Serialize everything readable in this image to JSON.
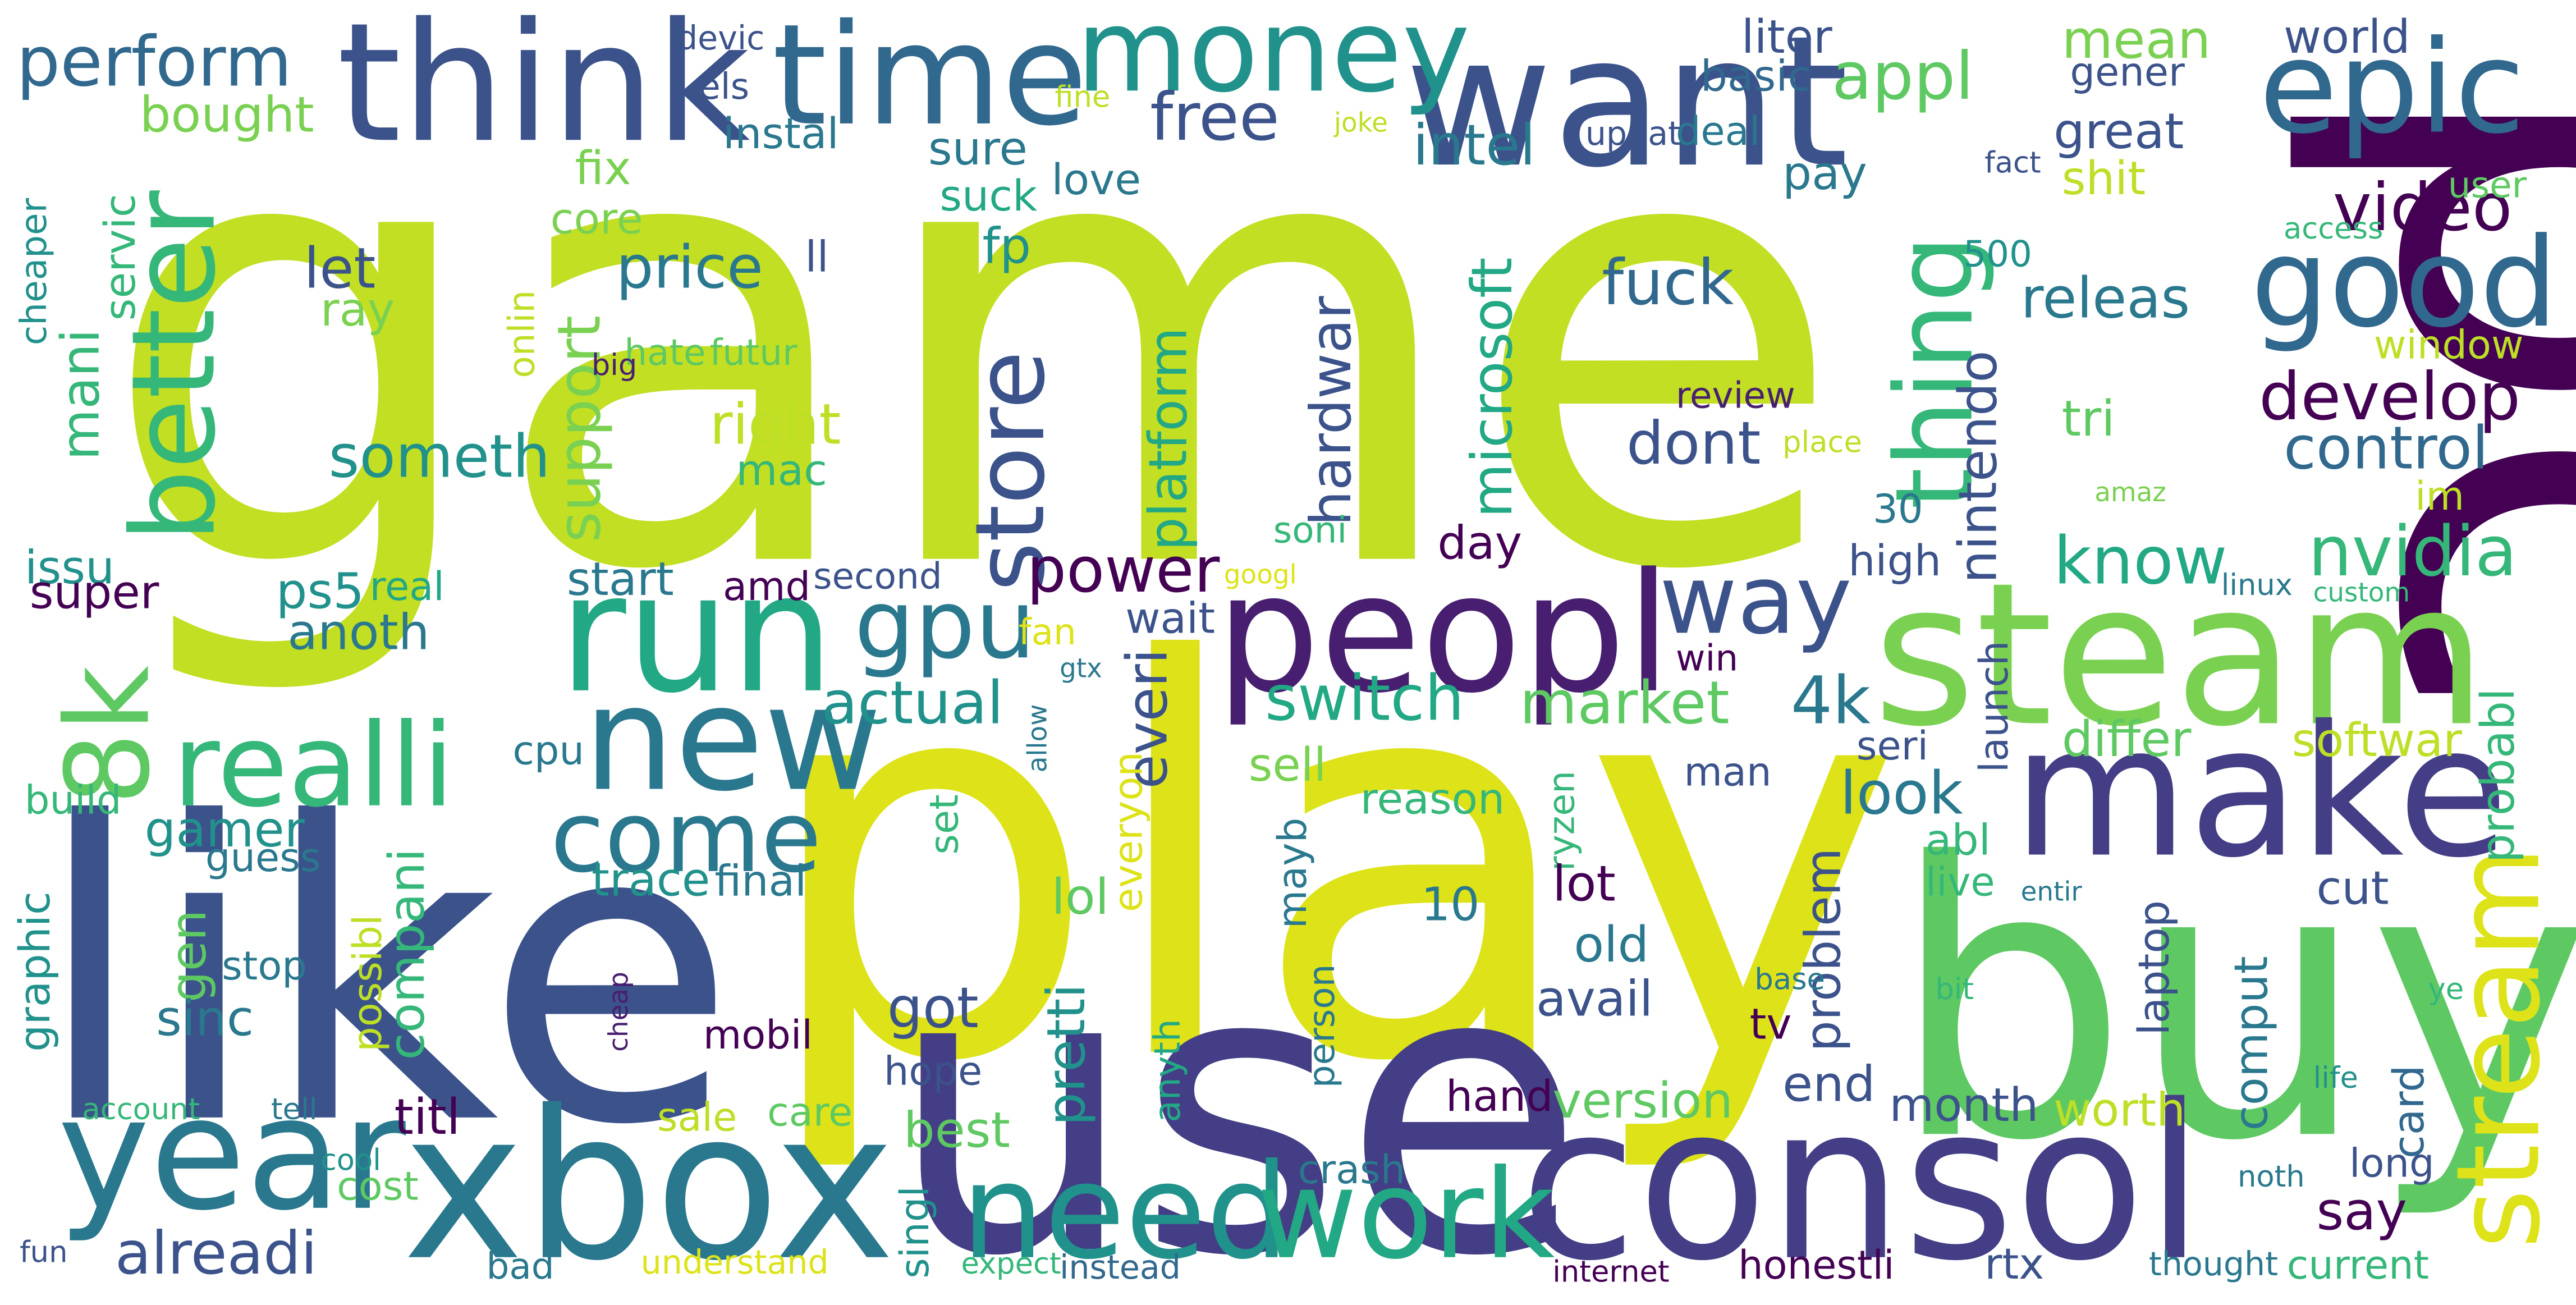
{
  "wordcloud": {
    "words": [
      {
        "text": "game",
        "color": "#c2df23"
      },
      {
        "text": "pc",
        "color": "#440154"
      },
      {
        "text": "play",
        "color": "#dde318"
      },
      {
        "text": "like",
        "color": "#3b528b"
      },
      {
        "text": "use",
        "color": "#433e85"
      },
      {
        "text": "buy",
        "color": "#5ec962"
      },
      {
        "text": "want",
        "color": "#3b528b"
      },
      {
        "text": "think",
        "color": "#3b528b"
      },
      {
        "text": "time",
        "color": "#31688e"
      },
      {
        "text": "money",
        "color": "#21918c"
      },
      {
        "text": "epic",
        "color": "#31688e"
      },
      {
        "text": "steam",
        "color": "#7ad151"
      },
      {
        "text": "consol",
        "color": "#433e85"
      },
      {
        "text": "xbox",
        "color": "#2a788e"
      },
      {
        "text": "make",
        "color": "#433e85"
      },
      {
        "text": "peopl",
        "color": "#481f70"
      },
      {
        "text": "run",
        "color": "#22a884"
      },
      {
        "text": "new",
        "color": "#2a788e"
      },
      {
        "text": "good",
        "color": "#31688e"
      },
      {
        "text": "year",
        "color": "#2a788e"
      },
      {
        "text": "better",
        "color": "#35b779"
      },
      {
        "text": "thing",
        "color": "#35b779"
      },
      {
        "text": "stream",
        "color": "#dde318"
      },
      {
        "text": "need",
        "color": "#21918c"
      },
      {
        "text": "work",
        "color": "#22a884"
      },
      {
        "text": "8k",
        "color": "#5ec962"
      },
      {
        "text": "realli",
        "color": "#35b779"
      },
      {
        "text": "come",
        "color": "#2a788e"
      },
      {
        "text": "store",
        "color": "#3b528b"
      },
      {
        "text": "gpu",
        "color": "#2a788e"
      },
      {
        "text": "way",
        "color": "#3b528b"
      },
      {
        "text": "perform",
        "color": "#31688e"
      },
      {
        "text": "appl",
        "color": "#5ec962"
      },
      {
        "text": "free",
        "color": "#3b528b"
      },
      {
        "text": "video",
        "color": "#440154"
      },
      {
        "text": "develop",
        "color": "#440154"
      },
      {
        "text": "control",
        "color": "#31688e"
      },
      {
        "text": "nvidia",
        "color": "#35b779"
      },
      {
        "text": "know",
        "color": "#22a884"
      },
      {
        "text": "power",
        "color": "#440154"
      },
      {
        "text": "switch",
        "color": "#22a884"
      },
      {
        "text": "market",
        "color": "#5ec962"
      },
      {
        "text": "4k",
        "color": "#2a788e"
      },
      {
        "text": "actual",
        "color": "#21918c"
      },
      {
        "text": "alreadi",
        "color": "#3b528b"
      },
      {
        "text": "price",
        "color": "#2a788e"
      },
      {
        "text": "support",
        "color": "#7ad151"
      },
      {
        "text": "someth",
        "color": "#21918c"
      },
      {
        "text": "fuck",
        "color": "#31688e"
      },
      {
        "text": "dont",
        "color": "#3b528b"
      },
      {
        "text": "intel",
        "color": "#2a788e"
      },
      {
        "text": "microsoft",
        "color": "#22a884"
      },
      {
        "text": "hardwar",
        "color": "#3b528b"
      },
      {
        "text": "platform",
        "color": "#22a884"
      },
      {
        "text": "nintendo",
        "color": "#3b528b"
      },
      {
        "text": "releas",
        "color": "#2a788e"
      },
      {
        "text": "mean",
        "color": "#7ad151"
      },
      {
        "text": "world",
        "color": "#3b528b"
      },
      {
        "text": "gener",
        "color": "#3b528b"
      },
      {
        "text": "great",
        "color": "#3b528b"
      },
      {
        "text": "shit",
        "color": "#bddf26"
      },
      {
        "text": "liter",
        "color": "#3b528b"
      },
      {
        "text": "basic",
        "color": "#31688e"
      },
      {
        "text": "deal",
        "color": "#2a788e"
      },
      {
        "text": "pay",
        "color": "#2a788e"
      },
      {
        "text": "bought",
        "color": "#7ad151"
      },
      {
        "text": "love",
        "color": "#2a788e"
      },
      {
        "text": "fix",
        "color": "#7ad151"
      },
      {
        "text": "sure",
        "color": "#2a788e"
      },
      {
        "text": "suck",
        "color": "#22a884"
      },
      {
        "text": "fp",
        "color": "#21918c"
      },
      {
        "text": "let",
        "color": "#3b528b"
      },
      {
        "text": "ray",
        "color": "#7ad151"
      },
      {
        "text": "core",
        "color": "#7ad151"
      },
      {
        "text": "servic",
        "color": "#35b779"
      },
      {
        "text": "mani",
        "color": "#35b779"
      },
      {
        "text": "ll",
        "color": "#3b528b"
      },
      {
        "text": "right",
        "color": "#bddf26"
      },
      {
        "text": "mac",
        "color": "#35b779"
      },
      {
        "text": "hate",
        "color": "#5ec962"
      },
      {
        "text": "futur",
        "color": "#5ec962"
      },
      {
        "text": "onlin",
        "color": "#bddf26"
      },
      {
        "text": "cheaper",
        "color": "#21918c"
      },
      {
        "text": "big",
        "color": "#481f70"
      },
      {
        "text": "instal",
        "color": "#2a788e"
      },
      {
        "text": "els",
        "color": "#3b528b"
      },
      {
        "text": "devic",
        "color": "#3b528b"
      },
      {
        "text": "fine",
        "color": "#bddf26"
      },
      {
        "text": "joke",
        "color": "#bddf26"
      },
      {
        "text": "updat",
        "color": "#3b528b"
      },
      {
        "text": "fact",
        "color": "#3b528b"
      },
      {
        "text": "user",
        "color": "#5ec962"
      },
      {
        "text": "access",
        "color": "#35b779"
      },
      {
        "text": "500",
        "color": "#21918c"
      },
      {
        "text": "window",
        "color": "#bddf26"
      },
      {
        "text": "review",
        "color": "#481f70"
      },
      {
        "text": "place",
        "color": "#bddf26"
      },
      {
        "text": "tri",
        "color": "#5ec962"
      },
      {
        "text": "amaz",
        "color": "#7ad151"
      },
      {
        "text": "im",
        "color": "#bddf26"
      },
      {
        "text": "30",
        "color": "#2a788e"
      },
      {
        "text": "high",
        "color": "#3b528b"
      },
      {
        "text": "issu",
        "color": "#21918c"
      },
      {
        "text": "super",
        "color": "#440154"
      },
      {
        "text": "real",
        "color": "#22a884"
      },
      {
        "text": "ps5",
        "color": "#21918c"
      },
      {
        "text": "anoth",
        "color": "#2a788e"
      },
      {
        "text": "start",
        "color": "#2a788e"
      },
      {
        "text": "amd",
        "color": "#440154"
      },
      {
        "text": "second",
        "color": "#3b528b"
      },
      {
        "text": "day",
        "color": "#440154"
      },
      {
        "text": "soni",
        "color": "#35b779"
      },
      {
        "text": "googl",
        "color": "#dde318"
      },
      {
        "text": "wait",
        "color": "#3b528b"
      },
      {
        "text": "fan",
        "color": "#dde318"
      },
      {
        "text": "gtx",
        "color": "#2a788e"
      },
      {
        "text": "everi",
        "color": "#3b528b"
      },
      {
        "text": "everyon",
        "color": "#dde318"
      },
      {
        "text": "sell",
        "color": "#7ad151"
      },
      {
        "text": "reason",
        "color": "#35b779"
      },
      {
        "text": "ryzen",
        "color": "#35b779"
      },
      {
        "text": "mayb",
        "color": "#2a788e"
      },
      {
        "text": "win",
        "color": "#440154"
      },
      {
        "text": "launch",
        "color": "#3b528b"
      },
      {
        "text": "linux",
        "color": "#2a788e"
      },
      {
        "text": "custom",
        "color": "#35b779"
      },
      {
        "text": "differ",
        "color": "#5ec962"
      },
      {
        "text": "softwar",
        "color": "#bddf26"
      },
      {
        "text": "probabl",
        "color": "#35b779"
      },
      {
        "text": "seri",
        "color": "#3b528b"
      },
      {
        "text": "look",
        "color": "#2a788e"
      },
      {
        "text": "man",
        "color": "#3b528b"
      },
      {
        "text": "abl",
        "color": "#35b779"
      },
      {
        "text": "cut",
        "color": "#3b528b"
      },
      {
        "text": "live",
        "color": "#35b779"
      },
      {
        "text": "entir",
        "color": "#2a788e"
      },
      {
        "text": "cpu",
        "color": "#2a788e"
      },
      {
        "text": "build",
        "color": "#35b779"
      },
      {
        "text": "gamer",
        "color": "#21918c"
      },
      {
        "text": "guess",
        "color": "#2a788e"
      },
      {
        "text": "gen",
        "color": "#5ec962"
      },
      {
        "text": "trace",
        "color": "#21918c"
      },
      {
        "text": "final",
        "color": "#2a788e"
      },
      {
        "text": "lol",
        "color": "#5ec962"
      },
      {
        "text": "set",
        "color": "#35b779"
      },
      {
        "text": "10",
        "color": "#2a788e"
      },
      {
        "text": "lot",
        "color": "#440154"
      },
      {
        "text": "old",
        "color": "#2a788e"
      },
      {
        "text": "avail",
        "color": "#3b528b"
      },
      {
        "text": "problem",
        "color": "#3b528b"
      },
      {
        "text": "version",
        "color": "#5ec962"
      },
      {
        "text": "end",
        "color": "#3b528b"
      },
      {
        "text": "tv",
        "color": "#440154"
      },
      {
        "text": "month",
        "color": "#3b528b"
      },
      {
        "text": "worth",
        "color": "#bddf26"
      },
      {
        "text": "comput",
        "color": "#2a788e"
      },
      {
        "text": "laptop",
        "color": "#3b528b"
      },
      {
        "text": "card",
        "color": "#31688e"
      },
      {
        "text": "long",
        "color": "#3b528b"
      },
      {
        "text": "bit",
        "color": "#35b779"
      },
      {
        "text": "ye",
        "color": "#35b779"
      },
      {
        "text": "life",
        "color": "#21918c"
      },
      {
        "text": "noth",
        "color": "#2a788e"
      },
      {
        "text": "say",
        "color": "#440154"
      },
      {
        "text": "graphic",
        "color": "#21918c"
      },
      {
        "text": "stop",
        "color": "#2a788e"
      },
      {
        "text": "possibl",
        "color": "#bddf26"
      },
      {
        "text": "compani",
        "color": "#35b779"
      },
      {
        "text": "sinc",
        "color": "#2a788e"
      },
      {
        "text": "got",
        "color": "#3b528b"
      },
      {
        "text": "pretti",
        "color": "#21918c"
      },
      {
        "text": "anyth",
        "color": "#22a884"
      },
      {
        "text": "hope",
        "color": "#3b528b"
      },
      {
        "text": "person",
        "color": "#2a788e"
      },
      {
        "text": "cheap",
        "color": "#481f70"
      },
      {
        "text": "allow",
        "color": "#2a788e"
      },
      {
        "text": "base",
        "color": "#2a788e"
      },
      {
        "text": "mobil",
        "color": "#440154"
      },
      {
        "text": "best",
        "color": "#5ec962"
      },
      {
        "text": "sale",
        "color": "#bddf26"
      },
      {
        "text": "care",
        "color": "#5ec962"
      },
      {
        "text": "singl",
        "color": "#21918c"
      },
      {
        "text": "hand",
        "color": "#440154"
      },
      {
        "text": "crash",
        "color": "#2a788e"
      },
      {
        "text": "titl",
        "color": "#440154"
      },
      {
        "text": "cost",
        "color": "#5ec962"
      },
      {
        "text": "cool",
        "color": "#21918c"
      },
      {
        "text": "account",
        "color": "#35b779"
      },
      {
        "text": "tell",
        "color": "#2a788e"
      },
      {
        "text": "fun",
        "color": "#3b528b"
      },
      {
        "text": "bad",
        "color": "#2a788e"
      },
      {
        "text": "understand",
        "color": "#dde318"
      },
      {
        "text": "expect",
        "color": "#35b779"
      },
      {
        "text": "instead",
        "color": "#31688e"
      },
      {
        "text": "internet",
        "color": "#440154"
      },
      {
        "text": "honestli",
        "color": "#440154"
      },
      {
        "text": "rtx",
        "color": "#3b528b"
      },
      {
        "text": "thought",
        "color": "#2a788e"
      },
      {
        "text": "current",
        "color": "#35b779"
      }
    ]
  }
}
